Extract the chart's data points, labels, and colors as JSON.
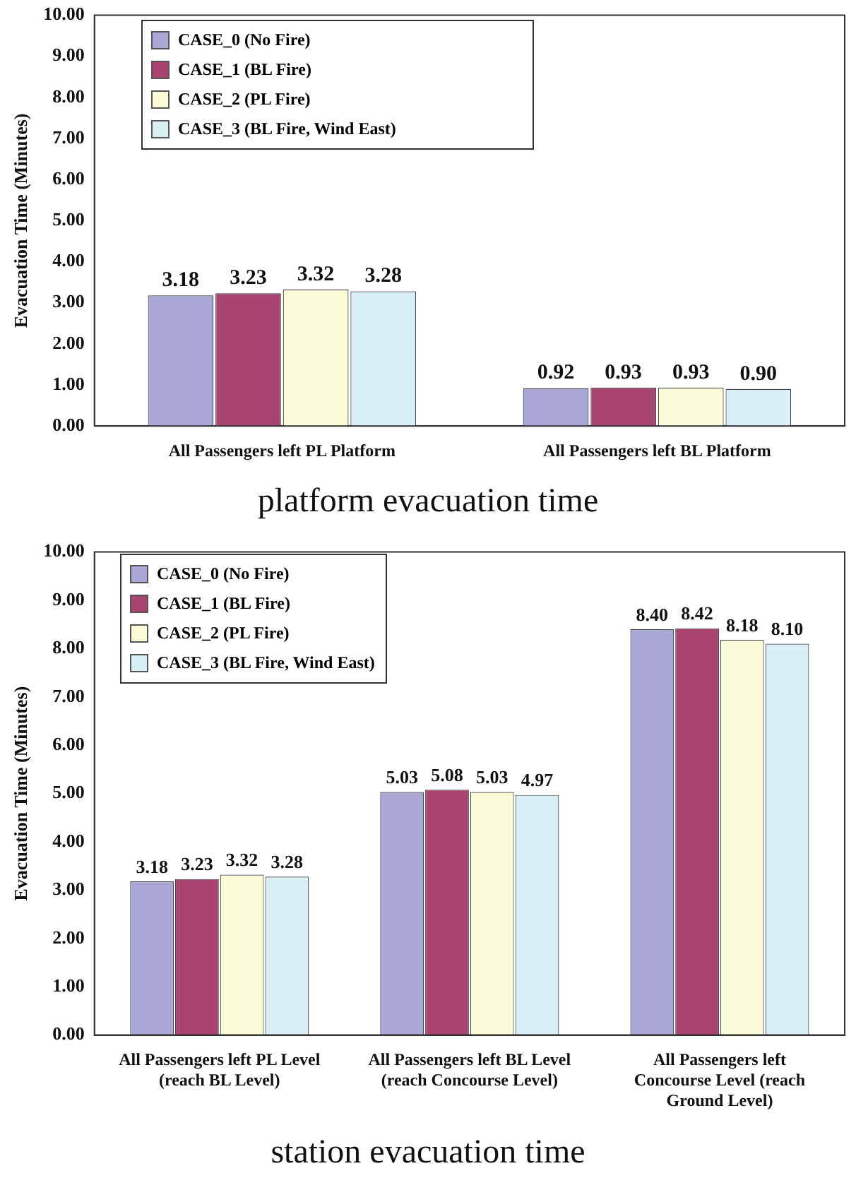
{
  "chart_data": [
    {
      "type": "bar",
      "title": "platform evacuation time",
      "ylabel": "Evacuation Time (Minutes)",
      "categories": [
        "All Passengers left PL Platform",
        "All Passengers left BL Platform"
      ],
      "series": [
        {
          "name": "CASE_0 (No Fire)",
          "color": "#a9a8d6",
          "values": [
            3.18,
            0.92
          ],
          "value_labels": [
            "3.18",
            "0.92"
          ]
        },
        {
          "name": "CASE_1 (BL Fire)",
          "color": "#a8446f",
          "values": [
            3.23,
            0.93
          ],
          "value_labels": [
            "3.23",
            "0.93"
          ]
        },
        {
          "name": "CASE_2 (PL Fire)",
          "color": "#fbfbd8",
          "values": [
            3.32,
            0.93
          ],
          "value_labels": [
            "3.32",
            "0.93"
          ]
        },
        {
          "name": "CASE_3 (BL Fire, Wind East)",
          "color": "#d9eff6",
          "values": [
            3.28,
            0.9
          ],
          "value_labels": [
            "3.28",
            "0.90"
          ]
        }
      ],
      "ylim": [
        0,
        10
      ],
      "yticks": [
        {
          "value": 0,
          "label": "0.00"
        },
        {
          "value": 1,
          "label": "1.00"
        },
        {
          "value": 2,
          "label": "2.00"
        },
        {
          "value": 3,
          "label": "3.00"
        },
        {
          "value": 4,
          "label": "4.00"
        },
        {
          "value": 5,
          "label": "5.00"
        },
        {
          "value": 6,
          "label": "6.00"
        },
        {
          "value": 7,
          "label": "7.00"
        },
        {
          "value": 8,
          "label": "8.00"
        },
        {
          "value": 9,
          "label": "9.00"
        },
        {
          "value": 10,
          "label": "10.00"
        }
      ],
      "grid": false,
      "legend": "top left"
    },
    {
      "type": "bar",
      "title": "station evacuation time",
      "ylabel": "Evacuation Time (Minutes)",
      "categories": [
        "All Passengers left PL Level (reach BL Level)",
        "All Passengers left BL Level (reach Concourse Level)",
        "All Passengers left Concourse Level (reach Ground Level)"
      ],
      "series": [
        {
          "name": "CASE_0 (No Fire)",
          "color": "#a9a8d6",
          "values": [
            3.18,
            5.03,
            8.4
          ],
          "value_labels": [
            "3.18",
            "5.03",
            "8.40"
          ]
        },
        {
          "name": "CASE_1 (BL Fire)",
          "color": "#a8446f",
          "values": [
            3.23,
            5.08,
            8.42
          ],
          "value_labels": [
            "3.23",
            "5.08",
            "8.42"
          ]
        },
        {
          "name": "CASE_2 (PL Fire)",
          "color": "#fbfbd8",
          "values": [
            3.32,
            5.03,
            8.18
          ],
          "value_labels": [
            "3.32",
            "5.03",
            "8.18"
          ]
        },
        {
          "name": "CASE_3 (BL Fire, Wind East)",
          "color": "#d9eff6",
          "values": [
            3.28,
            4.97,
            8.1
          ],
          "value_labels": [
            "3.28",
            "4.97",
            "8.10"
          ]
        }
      ],
      "ylim": [
        0,
        10
      ],
      "yticks": [
        {
          "value": 0,
          "label": "0.00"
        },
        {
          "value": 1,
          "label": "1.00"
        },
        {
          "value": 2,
          "label": "2.00"
        },
        {
          "value": 3,
          "label": "3.00"
        },
        {
          "value": 4,
          "label": "4.00"
        },
        {
          "value": 5,
          "label": "5.00"
        },
        {
          "value": 6,
          "label": "6.00"
        },
        {
          "value": 7,
          "label": "7.00"
        },
        {
          "value": 8,
          "label": "8.00"
        },
        {
          "value": 9,
          "label": "9.00"
        },
        {
          "value": 10,
          "label": "10.00"
        }
      ],
      "grid": false,
      "legend": "top left"
    }
  ]
}
